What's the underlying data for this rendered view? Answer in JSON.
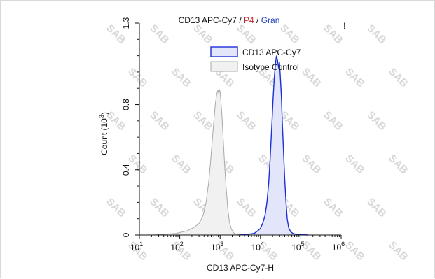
{
  "chart_data": {
    "type": "area",
    "title_parts": [
      {
        "text": "CD13 APC-Cy7",
        "color": "#111111"
      },
      {
        "text": " / ",
        "color": "#111111"
      },
      {
        "text": "P4",
        "color": "#c0282d"
      },
      {
        "text": " / ",
        "color": "#111111"
      },
      {
        "text": "Gran",
        "color": "#1f3fbf"
      }
    ],
    "title_mark": "!",
    "xlabel": "CD13 APC-Cy7-H",
    "ylabel": "Count (10",
    "ylabel_exp": "3",
    "ylabel_close": ")",
    "x_scale": "log",
    "xlim": [
      10,
      1000000
    ],
    "ylim": [
      0,
      1.3
    ],
    "x_ticks": [
      {
        "base": "10",
        "exp": "1",
        "value": 10
      },
      {
        "base": "10",
        "exp": "2",
        "value": 100
      },
      {
        "base": "10",
        "exp": "3",
        "value": 1000
      },
      {
        "base": "10",
        "exp": "4",
        "value": 10000
      },
      {
        "base": "10",
        "exp": "5",
        "value": 100000
      },
      {
        "base": "10",
        "exp": "6",
        "value": 1000000
      }
    ],
    "y_ticks": [
      {
        "label": "0",
        "value": 0
      },
      {
        "label": "0.4",
        "value": 0.4
      },
      {
        "label": "0.8",
        "value": 0.8
      },
      {
        "label": "1.3",
        "value": 1.3
      }
    ],
    "grid": false,
    "legend_position": "top-right",
    "series": [
      {
        "name": "CD13 APC-Cy7",
        "line_color": "#1a2fd6",
        "fill_color": "#e3e6fb",
        "points": [
          [
            3000,
            0
          ],
          [
            5000,
            0.005
          ],
          [
            7000,
            0.01
          ],
          [
            8500,
            0.025
          ],
          [
            10000,
            0.04
          ],
          [
            11500,
            0.075
          ],
          [
            13000,
            0.12
          ],
          [
            14500,
            0.2
          ],
          [
            16000,
            0.32
          ],
          [
            17500,
            0.48
          ],
          [
            19000,
            0.66
          ],
          [
            20500,
            0.83
          ],
          [
            22000,
            0.96
          ],
          [
            23500,
            1.05
          ],
          [
            25000,
            1.1
          ],
          [
            26500,
            1.07
          ],
          [
            28000,
            1.03
          ],
          [
            29500,
            1.06
          ],
          [
            31000,
            0.98
          ],
          [
            33000,
            0.85
          ],
          [
            35000,
            0.68
          ],
          [
            37500,
            0.5
          ],
          [
            40000,
            0.34
          ],
          [
            43000,
            0.2
          ],
          [
            46000,
            0.1
          ],
          [
            50000,
            0.045
          ],
          [
            56000,
            0.02
          ],
          [
            65000,
            0.008
          ],
          [
            80000,
            0.004
          ],
          [
            100000,
            0.002
          ],
          [
            150000,
            0
          ]
        ]
      },
      {
        "name": "Isotype Control",
        "line_color": "#a8a8a8",
        "fill_color": "#f1f1f1",
        "points": [
          [
            20,
            0
          ],
          [
            40,
            0.004
          ],
          [
            80,
            0.01
          ],
          [
            150,
            0.025
          ],
          [
            220,
            0.045
          ],
          [
            300,
            0.07
          ],
          [
            380,
            0.12
          ],
          [
            450,
            0.2
          ],
          [
            520,
            0.32
          ],
          [
            580,
            0.45
          ],
          [
            640,
            0.58
          ],
          [
            700,
            0.7
          ],
          [
            760,
            0.8
          ],
          [
            820,
            0.86
          ],
          [
            880,
            0.89
          ],
          [
            920,
            0.87
          ],
          [
            960,
            0.89
          ],
          [
            1000,
            0.88
          ],
          [
            1050,
            0.82
          ],
          [
            1120,
            0.72
          ],
          [
            1200,
            0.58
          ],
          [
            1300,
            0.42
          ],
          [
            1420,
            0.28
          ],
          [
            1550,
            0.16
          ],
          [
            1700,
            0.08
          ],
          [
            1900,
            0.035
          ],
          [
            2200,
            0.012
          ],
          [
            2700,
            0.004
          ],
          [
            3500,
            0
          ]
        ]
      }
    ],
    "watermark": "SAB"
  }
}
